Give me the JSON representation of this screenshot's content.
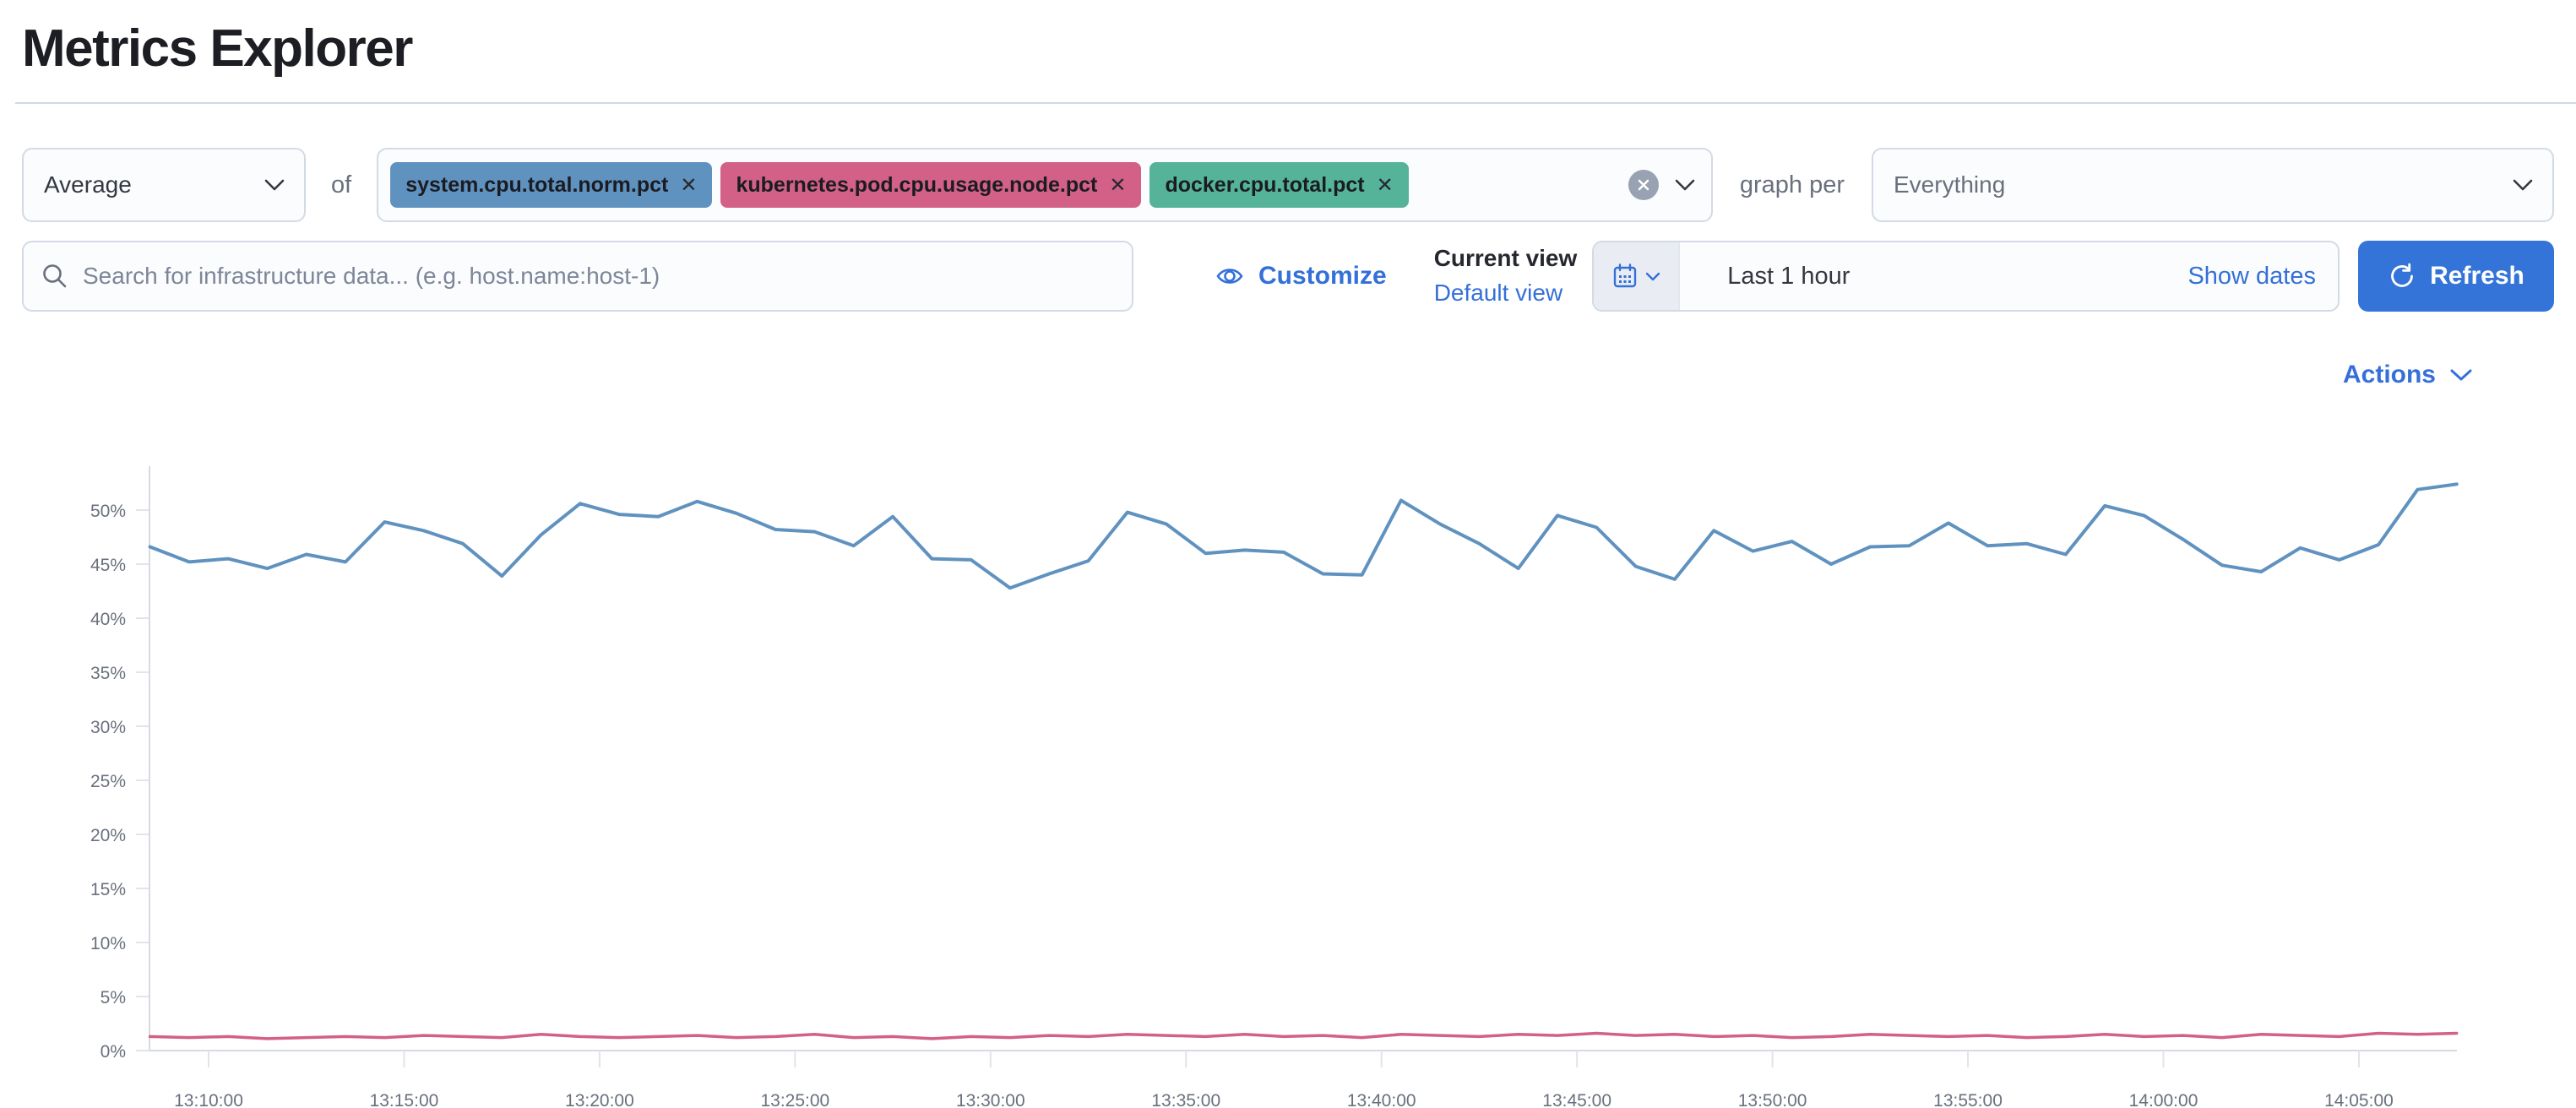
{
  "page": {
    "title": "Metrics Explorer"
  },
  "toolbar": {
    "aggregation": {
      "value": "Average"
    },
    "of_label": "of",
    "metrics": [
      {
        "label": "system.cpu.total.norm.pct",
        "color": "#6092C0"
      },
      {
        "label": "kubernetes.pod.cpu.usage.node.pct",
        "color": "#D36086"
      },
      {
        "label": "docker.cpu.total.pct",
        "color": "#54B399"
      }
    ],
    "remove_glyph": "✕",
    "graph_per_label": "graph per",
    "group_by": {
      "value": "Everything"
    }
  },
  "searchbar": {
    "value": "",
    "placeholder": "Search for infrastructure data... (e.g. host.name:host-1)"
  },
  "view_controls": {
    "customize_label": "Customize",
    "current_view_label": "Current view",
    "view_name": "Default view"
  },
  "datepicker": {
    "range_label": "Last 1 hour",
    "show_dates_label": "Show dates",
    "refresh_label": "Refresh"
  },
  "actions": {
    "label": "Actions"
  },
  "chart_data": {
    "type": "line",
    "title": "",
    "xlabel": "",
    "ylabel": "",
    "ylabel_format": "percent",
    "ylim": [
      0,
      54
    ],
    "grid": false,
    "legend": "none",
    "y_ticks": [
      "0%",
      "5%",
      "10%",
      "15%",
      "20%",
      "25%",
      "30%",
      "35%",
      "40%",
      "45%",
      "50%"
    ],
    "x_ticks": [
      "13:10:00",
      "13:15:00",
      "13:20:00",
      "13:25:00",
      "13:30:00",
      "13:35:00",
      "13:40:00",
      "13:45:00",
      "13:50:00",
      "13:55:00",
      "14:00:00",
      "14:05:00"
    ],
    "x": [
      "13:08:30",
      "13:09:30",
      "13:10:30",
      "13:11:30",
      "13:12:30",
      "13:13:30",
      "13:14:30",
      "13:15:30",
      "13:16:30",
      "13:17:30",
      "13:18:30",
      "13:19:30",
      "13:20:30",
      "13:21:30",
      "13:22:30",
      "13:23:30",
      "13:24:30",
      "13:25:30",
      "13:26:30",
      "13:27:30",
      "13:28:30",
      "13:29:30",
      "13:30:30",
      "13:31:30",
      "13:32:30",
      "13:33:30",
      "13:34:30",
      "13:35:30",
      "13:36:30",
      "13:37:30",
      "13:38:30",
      "13:39:30",
      "13:40:30",
      "13:41:30",
      "13:42:30",
      "13:43:30",
      "13:44:30",
      "13:45:30",
      "13:46:30",
      "13:47:30",
      "13:48:30",
      "13:49:30",
      "13:50:30",
      "13:51:30",
      "13:52:30",
      "13:53:30",
      "13:54:30",
      "13:55:30",
      "13:56:30",
      "13:57:30",
      "13:58:30",
      "13:59:30",
      "14:00:30",
      "14:01:30",
      "14:02:30",
      "14:03:30",
      "14:04:30",
      "14:05:30",
      "14:06:30",
      "14:07:30"
    ],
    "series": [
      {
        "name": "system.cpu.total.norm.pct (Average)",
        "color": "#6092C0",
        "values": [
          46.6,
          45.2,
          45.5,
          44.6,
          45.9,
          45.2,
          48.9,
          48.1,
          46.9,
          43.9,
          47.7,
          50.6,
          49.6,
          49.4,
          50.8,
          49.7,
          48.2,
          48.0,
          46.7,
          49.4,
          45.5,
          45.4,
          42.8,
          44.1,
          45.3,
          49.8,
          48.7,
          46.0,
          46.3,
          46.1,
          44.1,
          44.0,
          50.9,
          48.7,
          46.9,
          44.6,
          49.5,
          48.4,
          44.8,
          43.6,
          48.1,
          46.2,
          47.1,
          45.0,
          46.6,
          46.7,
          48.8,
          46.7,
          46.9,
          45.9,
          50.4,
          49.5,
          47.3,
          44.9,
          44.3,
          46.5,
          45.4,
          46.8,
          51.9,
          52.4
        ]
      },
      {
        "name": "kubernetes.pod.cpu.usage.node.pct (Average)",
        "color": "#D36086",
        "values": [
          1.3,
          1.2,
          1.3,
          1.1,
          1.2,
          1.3,
          1.2,
          1.4,
          1.3,
          1.2,
          1.5,
          1.3,
          1.2,
          1.3,
          1.4,
          1.2,
          1.3,
          1.5,
          1.2,
          1.3,
          1.1,
          1.3,
          1.2,
          1.4,
          1.3,
          1.5,
          1.4,
          1.3,
          1.5,
          1.3,
          1.4,
          1.2,
          1.5,
          1.4,
          1.3,
          1.5,
          1.4,
          1.6,
          1.4,
          1.5,
          1.3,
          1.4,
          1.2,
          1.3,
          1.5,
          1.4,
          1.3,
          1.4,
          1.2,
          1.3,
          1.5,
          1.3,
          1.4,
          1.2,
          1.5,
          1.4,
          1.3,
          1.6,
          1.5,
          1.6
        ]
      }
    ]
  }
}
